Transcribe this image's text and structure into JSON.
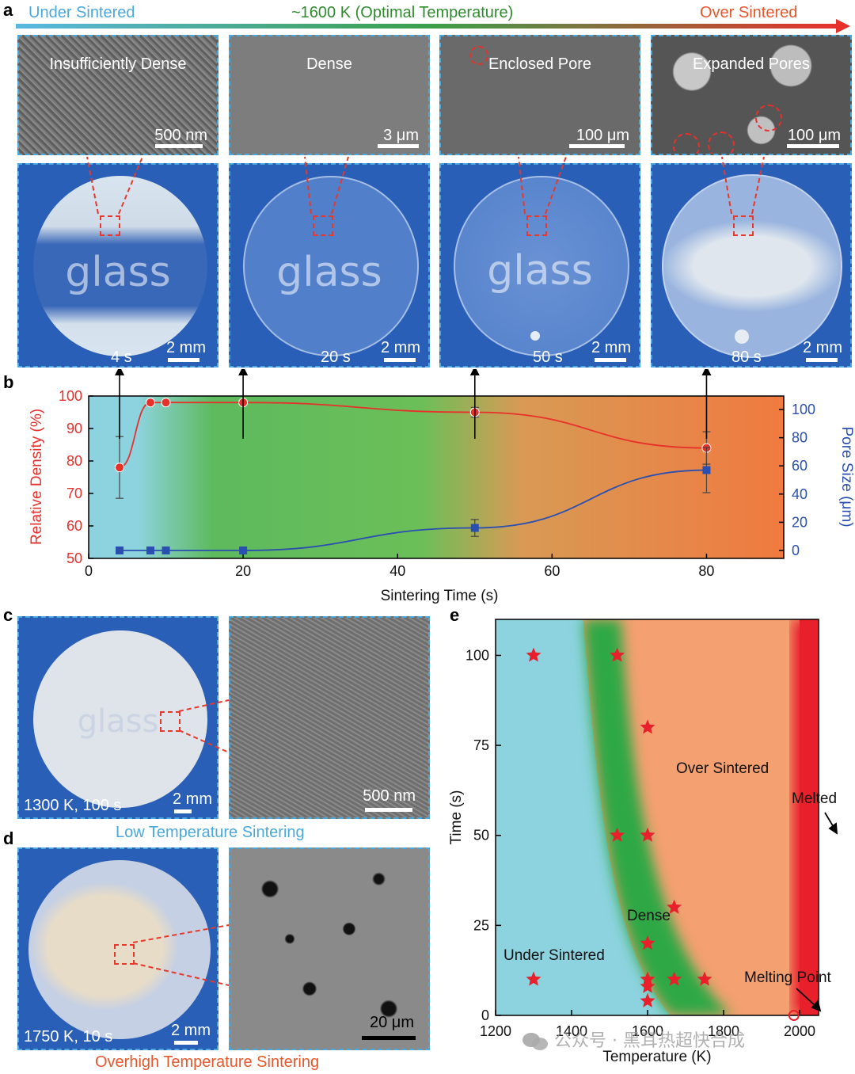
{
  "header": {
    "left": "Under Sintered",
    "center": "~1600 K (Optimal Temperature)",
    "right": "Over Sintered",
    "colors": {
      "left": "#4aa9dc",
      "center": "#2e8b2e",
      "right": "#e8572b"
    }
  },
  "panel_a": {
    "letter": "a",
    "tiles": [
      {
        "sem_label": "Insufficiently Dense",
        "scale": "500 nm",
        "photo_scale": "2 mm",
        "time": "4 s",
        "word": "glass"
      },
      {
        "sem_label": "Dense",
        "scale": "3 μm",
        "photo_scale": "2 mm",
        "time": "20 s",
        "word": "glass"
      },
      {
        "sem_label": "Enclosed Pore",
        "scale": "100 μm",
        "photo_scale": "2 mm",
        "time": "50 s",
        "word": "glass"
      },
      {
        "sem_label": "Expanded Pores",
        "scale": "100 μm",
        "photo_scale": "2 mm",
        "time": "80 s",
        "word": ""
      }
    ]
  },
  "panel_b": {
    "letter": "b",
    "chart_data": {
      "type": "line",
      "xlabel": "Sintering Time (s)",
      "ylabel_left": "Relative Density (%)",
      "ylabel_right": "Pore Size (μm)",
      "xlim": [
        0,
        90
      ],
      "ylim_left": [
        50,
        100
      ],
      "ylim_right": [
        0,
        100
      ],
      "xticks": [
        "0",
        "20",
        "40",
        "60",
        "80"
      ],
      "yticks_left": [
        "50",
        "60",
        "70",
        "80",
        "90",
        "100"
      ],
      "yticks_right": [
        "0",
        "20",
        "40",
        "60",
        "80",
        "100"
      ],
      "background": [
        "#8dd3df",
        "#5dba5d",
        "#f07a40"
      ],
      "series": [
        {
          "axis": "left",
          "color": "#e8302b",
          "x": [
            4,
            8,
            10,
            20,
            50,
            80
          ],
          "y": [
            78,
            98,
            98,
            98,
            95,
            84
          ],
          "err": [
            9.5,
            0,
            0,
            0,
            1.5,
            5
          ]
        },
        {
          "axis": "right",
          "color": "#2a4fb0",
          "x": [
            4,
            8,
            10,
            20,
            50,
            80
          ],
          "y": [
            0,
            0,
            0,
            0,
            16,
            57
          ],
          "err": [
            0,
            0,
            0,
            0,
            6,
            16
          ]
        }
      ],
      "arrows_x": [
        4,
        20,
        50,
        80
      ]
    }
  },
  "panel_c": {
    "letter": "c",
    "photo_caption": "1300 K, 100 s",
    "photo_scale": "2 mm",
    "sem_scale": "500 nm",
    "word": "glass",
    "title": "Low Temperature Sintering"
  },
  "panel_d": {
    "letter": "d",
    "photo_caption": "1750 K, 10 s",
    "photo_scale": "2 mm",
    "sem_scale": "20 μm",
    "title": "Overhigh Temperature Sintering"
  },
  "panel_e": {
    "letter": "e",
    "chart_data": {
      "type": "scatter",
      "xlabel": "Temperature (K)",
      "ylabel": "Time (s)",
      "xlim": [
        1200,
        2050
      ],
      "ylim": [
        0,
        110
      ],
      "xticks": [
        "1200",
        "1400",
        "1600",
        "1800",
        "2000"
      ],
      "yticks": [
        "0",
        "25",
        "50",
        "75",
        "100"
      ],
      "region_labels": [
        "Under Sintered",
        "Dense",
        "Over Sintered",
        "Melted",
        "Melting Point"
      ],
      "points": [
        {
          "x": 1300,
          "y": 100
        },
        {
          "x": 1520,
          "y": 100
        },
        {
          "x": 1600,
          "y": 80
        },
        {
          "x": 1520,
          "y": 50
        },
        {
          "x": 1600,
          "y": 50
        },
        {
          "x": 1670,
          "y": 30
        },
        {
          "x": 1600,
          "y": 20
        },
        {
          "x": 1300,
          "y": 10
        },
        {
          "x": 1600,
          "y": 10
        },
        {
          "x": 1600,
          "y": 8
        },
        {
          "x": 1670,
          "y": 10
        },
        {
          "x": 1750,
          "y": 10
        },
        {
          "x": 1600,
          "y": 4
        }
      ],
      "melting_point": {
        "x": 1985,
        "y": 0
      },
      "colors": {
        "under": "#8dd3df",
        "dense": "#2fa845",
        "over": "#f4a070",
        "melted": "#e8202b",
        "star": "#e8202b"
      }
    }
  },
  "watermark": "公众号 · 黑耳热超快合成"
}
